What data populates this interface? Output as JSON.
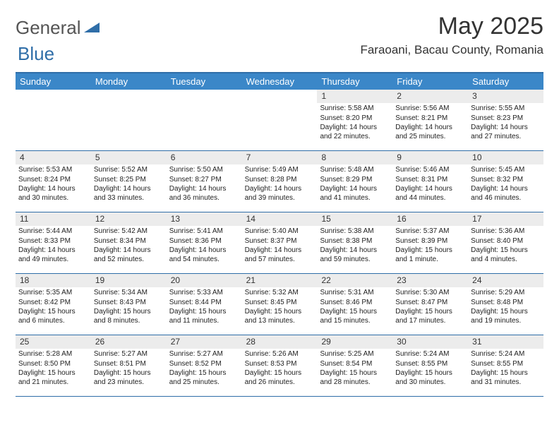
{
  "branding": {
    "general": "General",
    "blue": "Blue"
  },
  "title": "May 2025",
  "location": "Faraoani, Bacau County, Romania",
  "weekdays": [
    "Sunday",
    "Monday",
    "Tuesday",
    "Wednesday",
    "Thursday",
    "Friday",
    "Saturday"
  ],
  "colors": {
    "header_bar": "#3b87c8",
    "border": "#2f6ea8",
    "daynum_bg": "#ececec",
    "text": "#222222",
    "title": "#333333"
  },
  "layout": {
    "first_weekday_index": 4,
    "num_days": 31,
    "cols": 7
  },
  "days": [
    {
      "n": 1,
      "sunrise": "5:58 AM",
      "sunset": "8:20 PM",
      "daylight": "14 hours and 22 minutes."
    },
    {
      "n": 2,
      "sunrise": "5:56 AM",
      "sunset": "8:21 PM",
      "daylight": "14 hours and 25 minutes."
    },
    {
      "n": 3,
      "sunrise": "5:55 AM",
      "sunset": "8:23 PM",
      "daylight": "14 hours and 27 minutes."
    },
    {
      "n": 4,
      "sunrise": "5:53 AM",
      "sunset": "8:24 PM",
      "daylight": "14 hours and 30 minutes."
    },
    {
      "n": 5,
      "sunrise": "5:52 AM",
      "sunset": "8:25 PM",
      "daylight": "14 hours and 33 minutes."
    },
    {
      "n": 6,
      "sunrise": "5:50 AM",
      "sunset": "8:27 PM",
      "daylight": "14 hours and 36 minutes."
    },
    {
      "n": 7,
      "sunrise": "5:49 AM",
      "sunset": "8:28 PM",
      "daylight": "14 hours and 39 minutes."
    },
    {
      "n": 8,
      "sunrise": "5:48 AM",
      "sunset": "8:29 PM",
      "daylight": "14 hours and 41 minutes."
    },
    {
      "n": 9,
      "sunrise": "5:46 AM",
      "sunset": "8:31 PM",
      "daylight": "14 hours and 44 minutes."
    },
    {
      "n": 10,
      "sunrise": "5:45 AM",
      "sunset": "8:32 PM",
      "daylight": "14 hours and 46 minutes."
    },
    {
      "n": 11,
      "sunrise": "5:44 AM",
      "sunset": "8:33 PM",
      "daylight": "14 hours and 49 minutes."
    },
    {
      "n": 12,
      "sunrise": "5:42 AM",
      "sunset": "8:34 PM",
      "daylight": "14 hours and 52 minutes."
    },
    {
      "n": 13,
      "sunrise": "5:41 AM",
      "sunset": "8:36 PM",
      "daylight": "14 hours and 54 minutes."
    },
    {
      "n": 14,
      "sunrise": "5:40 AM",
      "sunset": "8:37 PM",
      "daylight": "14 hours and 57 minutes."
    },
    {
      "n": 15,
      "sunrise": "5:38 AM",
      "sunset": "8:38 PM",
      "daylight": "14 hours and 59 minutes."
    },
    {
      "n": 16,
      "sunrise": "5:37 AM",
      "sunset": "8:39 PM",
      "daylight": "15 hours and 1 minute."
    },
    {
      "n": 17,
      "sunrise": "5:36 AM",
      "sunset": "8:40 PM",
      "daylight": "15 hours and 4 minutes."
    },
    {
      "n": 18,
      "sunrise": "5:35 AM",
      "sunset": "8:42 PM",
      "daylight": "15 hours and 6 minutes."
    },
    {
      "n": 19,
      "sunrise": "5:34 AM",
      "sunset": "8:43 PM",
      "daylight": "15 hours and 8 minutes."
    },
    {
      "n": 20,
      "sunrise": "5:33 AM",
      "sunset": "8:44 PM",
      "daylight": "15 hours and 11 minutes."
    },
    {
      "n": 21,
      "sunrise": "5:32 AM",
      "sunset": "8:45 PM",
      "daylight": "15 hours and 13 minutes."
    },
    {
      "n": 22,
      "sunrise": "5:31 AM",
      "sunset": "8:46 PM",
      "daylight": "15 hours and 15 minutes."
    },
    {
      "n": 23,
      "sunrise": "5:30 AM",
      "sunset": "8:47 PM",
      "daylight": "15 hours and 17 minutes."
    },
    {
      "n": 24,
      "sunrise": "5:29 AM",
      "sunset": "8:48 PM",
      "daylight": "15 hours and 19 minutes."
    },
    {
      "n": 25,
      "sunrise": "5:28 AM",
      "sunset": "8:50 PM",
      "daylight": "15 hours and 21 minutes."
    },
    {
      "n": 26,
      "sunrise": "5:27 AM",
      "sunset": "8:51 PM",
      "daylight": "15 hours and 23 minutes."
    },
    {
      "n": 27,
      "sunrise": "5:27 AM",
      "sunset": "8:52 PM",
      "daylight": "15 hours and 25 minutes."
    },
    {
      "n": 28,
      "sunrise": "5:26 AM",
      "sunset": "8:53 PM",
      "daylight": "15 hours and 26 minutes."
    },
    {
      "n": 29,
      "sunrise": "5:25 AM",
      "sunset": "8:54 PM",
      "daylight": "15 hours and 28 minutes."
    },
    {
      "n": 30,
      "sunrise": "5:24 AM",
      "sunset": "8:55 PM",
      "daylight": "15 hours and 30 minutes."
    },
    {
      "n": 31,
      "sunrise": "5:24 AM",
      "sunset": "8:55 PM",
      "daylight": "15 hours and 31 minutes."
    }
  ],
  "labels": {
    "sunrise": "Sunrise: ",
    "sunset": "Sunset: ",
    "daylight": "Daylight: "
  }
}
